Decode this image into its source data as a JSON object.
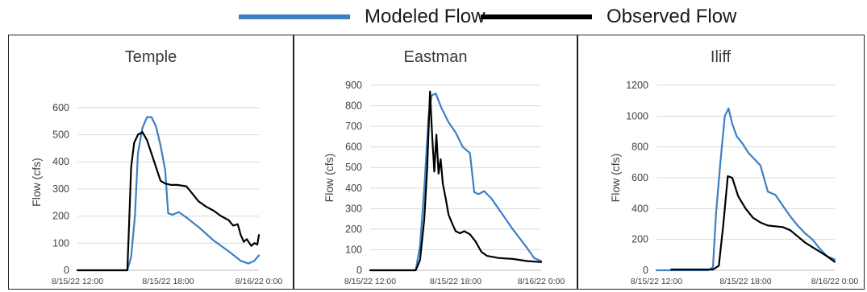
{
  "legend": {
    "modeled_label": "Modeled Flow",
    "observed_label": "Observed Flow",
    "modeled_color": "#3c7fc4",
    "observed_color": "#000000"
  },
  "chart_data": [
    {
      "type": "line",
      "title": "Temple",
      "ylabel": "Flow (cfs)",
      "xlabel": "",
      "ylim": [
        0,
        650
      ],
      "yticks": [
        0,
        100,
        200,
        300,
        400,
        500,
        600
      ],
      "xlim_hours": [
        12,
        24
      ],
      "xtick_labels": [
        "8/15/22 12:00",
        "8/15/22 18:00",
        "8/16/22 0:00"
      ],
      "grid": true,
      "series": [
        {
          "name": "Modeled Flow",
          "color": "#3c7fc4",
          "x": [
            12.0,
            15.3,
            15.55,
            15.8,
            16.0,
            16.3,
            16.6,
            16.9,
            17.2,
            17.5,
            17.8,
            18.0,
            18.3,
            18.7,
            19.2,
            20.0,
            21.0,
            22.0,
            22.8,
            23.3,
            23.7,
            24.0
          ],
          "y": [
            0,
            0,
            50,
            200,
            430,
            525,
            565,
            565,
            530,
            460,
            370,
            210,
            205,
            215,
            195,
            160,
            110,
            70,
            35,
            25,
            35,
            55
          ]
        },
        {
          "name": "Observed Flow",
          "color": "#000000",
          "x": [
            12.0,
            15.3,
            15.4,
            15.55,
            15.75,
            16.0,
            16.3,
            16.6,
            16.9,
            17.2,
            17.5,
            17.8,
            18.2,
            18.6,
            19.2,
            19.5,
            20.0,
            20.5,
            21.0,
            21.5,
            22.0,
            22.3,
            22.6,
            22.8,
            23.0,
            23.2,
            23.5,
            23.7,
            23.9,
            24.0
          ],
          "y": [
            0,
            0,
            150,
            380,
            470,
            500,
            510,
            480,
            430,
            380,
            330,
            320,
            315,
            315,
            310,
            290,
            255,
            235,
            220,
            200,
            185,
            165,
            170,
            130,
            105,
            115,
            90,
            100,
            95,
            130
          ]
        }
      ]
    },
    {
      "type": "line",
      "title": "Eastman",
      "ylabel": "Flow (cfs)",
      "xlabel": "",
      "ylim": [
        0,
        900
      ],
      "yticks": [
        0,
        100,
        200,
        300,
        400,
        500,
        600,
        700,
        800,
        900
      ],
      "xlim_hours": [
        12,
        24
      ],
      "xtick_labels": [
        "8/15/22 12:00",
        "8/15/22 18:00",
        "8/16/22 0:00"
      ],
      "grid": true,
      "series": [
        {
          "name": "Modeled Flow",
          "color": "#3c7fc4",
          "x": [
            12.0,
            15.2,
            15.5,
            15.8,
            16.1,
            16.3,
            16.6,
            17.0,
            17.5,
            18.0,
            18.5,
            19.0,
            19.3,
            19.6,
            20.0,
            20.5,
            21.0,
            22.0,
            23.0,
            23.5,
            24.0
          ],
          "y": [
            0,
            0,
            120,
            400,
            750,
            850,
            860,
            790,
            720,
            670,
            600,
            570,
            380,
            370,
            385,
            350,
            300,
            200,
            110,
            60,
            45
          ]
        },
        {
          "name": "Observed Flow",
          "color": "#000000",
          "x": [
            12.0,
            15.2,
            15.5,
            15.8,
            16.0,
            16.2,
            16.35,
            16.5,
            16.65,
            16.8,
            16.95,
            17.1,
            17.3,
            17.5,
            17.8,
            18.0,
            18.3,
            18.6,
            19.0,
            19.4,
            19.8,
            20.2,
            21.0,
            22.0,
            23.0,
            24.0
          ],
          "y": [
            0,
            0,
            50,
            250,
            500,
            870,
            650,
            480,
            660,
            470,
            540,
            420,
            350,
            270,
            220,
            190,
            180,
            190,
            175,
            140,
            90,
            70,
            60,
            55,
            45,
            40
          ]
        }
      ]
    },
    {
      "type": "line",
      "title": "Iliff",
      "ylabel": "Flow (cfs)",
      "xlabel": "",
      "ylim": [
        0,
        1200
      ],
      "yticks": [
        0,
        200,
        400,
        600,
        800,
        1000,
        1200
      ],
      "xlim_hours": [
        12,
        24
      ],
      "xtick_labels": [
        "8/15/22 12:00",
        "8/15/22 18:00",
        "8/16/22 0:00"
      ],
      "grid": true,
      "series": [
        {
          "name": "Modeled Flow",
          "color": "#3c7fc4",
          "x": [
            12.0,
            15.5,
            15.8,
            16.0,
            16.3,
            16.6,
            16.85,
            17.1,
            17.4,
            17.8,
            18.2,
            18.6,
            19.0,
            19.5,
            20.0,
            20.5,
            21.0,
            21.5,
            22.0,
            22.5,
            23.0,
            23.5,
            24.0
          ],
          "y": [
            0,
            0,
            20,
            360,
            700,
            1000,
            1050,
            950,
            870,
            820,
            760,
            720,
            680,
            510,
            490,
            420,
            350,
            290,
            240,
            200,
            140,
            90,
            70
          ]
        },
        {
          "name": "Observed Flow",
          "color": "#000000",
          "x": [
            13.0,
            15.8,
            16.2,
            16.5,
            16.8,
            17.1,
            17.5,
            18.0,
            18.5,
            19.0,
            19.5,
            20.0,
            20.5,
            21.0,
            21.5,
            22.0,
            22.5,
            23.0,
            23.5,
            24.0
          ],
          "y": [
            5,
            5,
            30,
            300,
            610,
            600,
            480,
            400,
            340,
            310,
            290,
            285,
            280,
            260,
            220,
            180,
            150,
            120,
            90,
            55
          ]
        }
      ]
    }
  ]
}
